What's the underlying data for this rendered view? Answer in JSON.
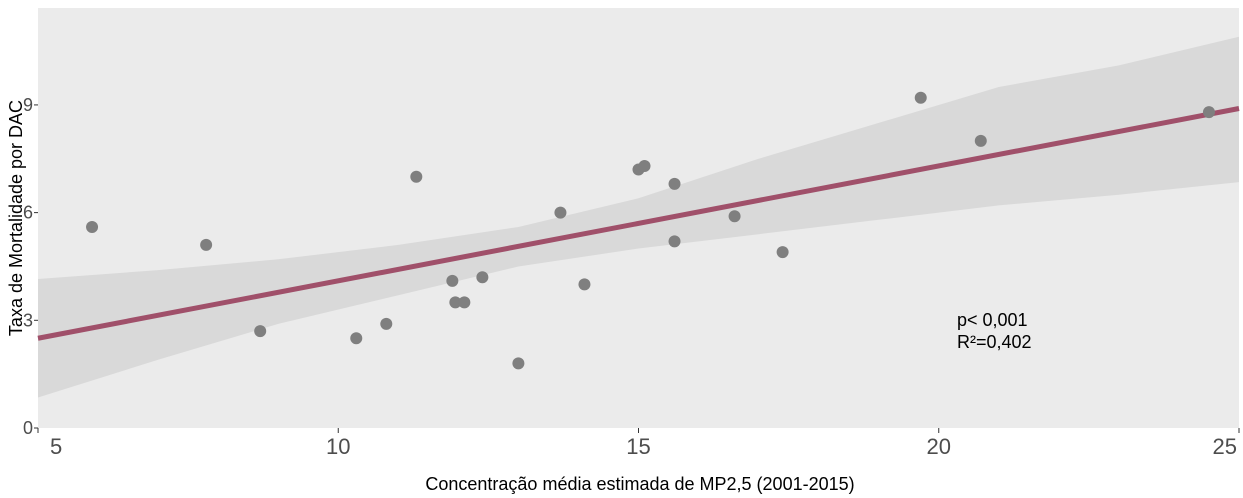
{
  "chart_data": {
    "type": "scatter",
    "xlabel": "Concentração média estimada de MP2,5 (2001-2015)",
    "ylabel": "Taxa de Mortalidade por DAC",
    "xlim": [
      5,
      25
    ],
    "ylim": [
      0,
      11.7
    ],
    "x_ticks": [
      "5",
      "10",
      "15",
      "20",
      "25"
    ],
    "y_ticks": [
      "0",
      "3",
      "6",
      "9"
    ],
    "grid": false,
    "panel_background": "#ebebeb",
    "point_color": "#7f7f7f",
    "line_color": "#a0506a",
    "band_color": "#d9d9d9",
    "points": [
      {
        "x": 5.9,
        "y": 5.6
      },
      {
        "x": 7.8,
        "y": 5.1
      },
      {
        "x": 8.7,
        "y": 2.7
      },
      {
        "x": 10.3,
        "y": 2.5
      },
      {
        "x": 10.8,
        "y": 2.9
      },
      {
        "x": 11.3,
        "y": 7.0
      },
      {
        "x": 11.9,
        "y": 4.1
      },
      {
        "x": 11.95,
        "y": 3.5
      },
      {
        "x": 12.1,
        "y": 3.5
      },
      {
        "x": 12.4,
        "y": 4.2
      },
      {
        "x": 13.0,
        "y": 1.8
      },
      {
        "x": 13.7,
        "y": 6.0
      },
      {
        "x": 14.1,
        "y": 4.0
      },
      {
        "x": 15.0,
        "y": 7.2
      },
      {
        "x": 15.1,
        "y": 7.3
      },
      {
        "x": 15.6,
        "y": 6.8
      },
      {
        "x": 15.6,
        "y": 5.2
      },
      {
        "x": 16.6,
        "y": 5.9
      },
      {
        "x": 17.4,
        "y": 4.9
      },
      {
        "x": 19.7,
        "y": 9.2
      },
      {
        "x": 20.7,
        "y": 8.0
      },
      {
        "x": 24.5,
        "y": 8.8
      }
    ],
    "fit": {
      "type": "linear",
      "x_range": [
        5,
        25
      ],
      "y_at_x_min": 2.5,
      "y_at_x_max": 8.9
    },
    "confidence_band": [
      {
        "x": 5,
        "lower": 0.85,
        "upper": 4.15
      },
      {
        "x": 7,
        "lower": 1.9,
        "upper": 4.4
      },
      {
        "x": 9,
        "lower": 2.9,
        "upper": 4.7
      },
      {
        "x": 11,
        "lower": 3.7,
        "upper": 5.1
      },
      {
        "x": 13,
        "lower": 4.5,
        "upper": 5.6
      },
      {
        "x": 15,
        "lower": 5.0,
        "upper": 6.4
      },
      {
        "x": 17,
        "lower": 5.4,
        "upper": 7.5
      },
      {
        "x": 19,
        "lower": 5.8,
        "upper": 8.5
      },
      {
        "x": 21,
        "lower": 6.2,
        "upper": 9.5
      },
      {
        "x": 23,
        "lower": 6.5,
        "upper": 10.1
      },
      {
        "x": 25,
        "lower": 6.85,
        "upper": 10.9
      }
    ],
    "annotations": {
      "p_value": "p< 0,001",
      "r_squared": "R²=0,402"
    }
  }
}
